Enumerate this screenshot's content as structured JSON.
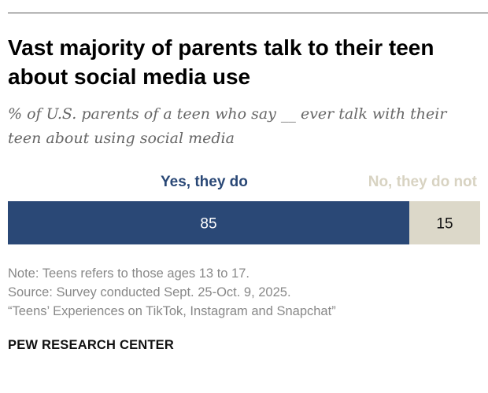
{
  "title": "Vast majority of parents talk to their teen about social media use",
  "subtitle": "% of U.S. parents of a teen who say __ ever talk with their teen about using social media",
  "colors": {
    "yes": "#2a4876",
    "no": "#dcd8c9",
    "yes_label_text": "#2a4876",
    "no_label_text": "#d8d3c2"
  },
  "chart_data": {
    "type": "bar",
    "orientation": "horizontal-stacked",
    "categories": [
      ""
    ],
    "series": [
      {
        "name": "Yes, they do",
        "values": [
          85
        ]
      },
      {
        "name": "No, they do not",
        "values": [
          15
        ]
      }
    ],
    "xlim": [
      0,
      100
    ],
    "grid": false,
    "legend": "top"
  },
  "notes": {
    "note": "Note: Teens refers to those ages 13 to 17.",
    "source": "Source: Survey conducted Sept. 25-Oct. 9, 2025.",
    "report": "“Teens’ Experiences on TikTok, Instagram and Snapchat”"
  },
  "brand": "PEW RESEARCH CENTER"
}
